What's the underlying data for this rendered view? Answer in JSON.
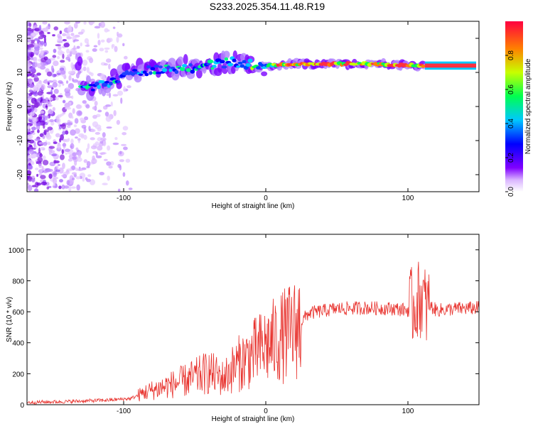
{
  "title": "S233.2025.354.11.48.R19",
  "chart_data": [
    {
      "type": "heatmap",
      "name": "spectrogram",
      "xlabel": "Height of straight line (km)",
      "ylabel": "Frequency (Hz)",
      "xlim": [
        -168,
        150
      ],
      "ylim": [
        -25,
        25
      ],
      "xticks": [
        -100,
        0,
        100
      ],
      "yticks": [
        -20,
        -10,
        0,
        10,
        20
      ],
      "colorbar": {
        "label": "Normalized spectral amplitude",
        "range": [
          0,
          1
        ],
        "ticks": [
          0.0,
          0.2,
          0.4,
          0.6,
          0.8
        ]
      },
      "ridge": [
        {
          "x": -130,
          "f": 5
        },
        {
          "x": -110,
          "f": 7
        },
        {
          "x": -95,
          "f": 10
        },
        {
          "x": -75,
          "f": 11
        },
        {
          "x": -50,
          "f": 11.5
        },
        {
          "x": -25,
          "f": 13
        },
        {
          "x": 0,
          "f": 12
        },
        {
          "x": 25,
          "f": 12.5
        },
        {
          "x": 75,
          "f": 12.5
        },
        {
          "x": 110,
          "f": 12
        },
        {
          "x": 148,
          "f": 12
        }
      ]
    },
    {
      "type": "line",
      "name": "snr",
      "xlabel": "Height of straight line (km)",
      "ylabel": "SNR (10 * v/v)",
      "xlim": [
        -168,
        150
      ],
      "ylim": [
        0,
        1100
      ],
      "xticks": [
        -100,
        0,
        100
      ],
      "yticks": [
        0,
        200,
        400,
        600,
        800,
        1000
      ],
      "color": "#e8332e",
      "series": [
        {
          "name": "SNR",
          "x": [
            -168,
            -140,
            -110,
            -95,
            -85,
            -70,
            -55,
            -40,
            -30,
            -20,
            -10,
            0,
            10,
            20,
            30,
            50,
            70,
            90,
            100,
            105,
            110,
            113,
            115,
            120,
            135,
            150
          ],
          "y": [
            15,
            20,
            30,
            40,
            80,
            120,
            160,
            210,
            170,
            260,
            320,
            380,
            430,
            480,
            590,
            620,
            625,
            620,
            610,
            650,
            700,
            620,
            640,
            610,
            620,
            625
          ]
        }
      ]
    }
  ]
}
